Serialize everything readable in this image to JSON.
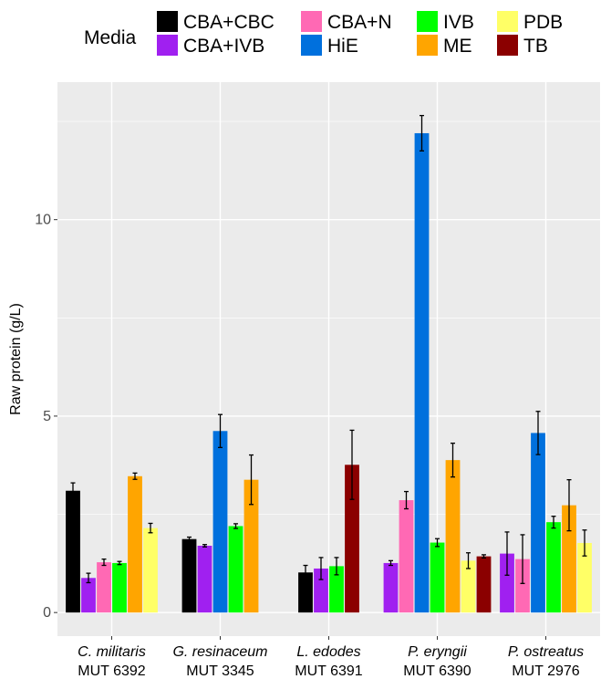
{
  "chart_data": {
    "type": "bar",
    "ylabel": "Raw protein (g/L)",
    "xlabel": "",
    "ylim": [
      -0.6,
      13.5
    ],
    "yticks": [
      0,
      5,
      10
    ],
    "ytick_labels": [
      "0",
      "5",
      "10"
    ],
    "grid": true,
    "legend_position": "top",
    "legend": {
      "title": "Media",
      "entries": [
        {
          "key": "CBA+CBC",
          "label": "CBA+CBC",
          "color": "#000000"
        },
        {
          "key": "CBA+IVB",
          "label": "CBA+IVB",
          "color": "#a020f0"
        },
        {
          "key": "CBA+N",
          "label": "CBA+N",
          "color": "#ff69b4"
        },
        {
          "key": "HiE",
          "label": "HiE",
          "color": "#0070dd"
        },
        {
          "key": "IVB",
          "label": "IVB",
          "color": "#00ff00"
        },
        {
          "key": "ME",
          "label": "ME",
          "color": "#ffa500"
        },
        {
          "key": "PDB",
          "label": "PDB",
          "color": "#ffff66"
        },
        {
          "key": "TB",
          "label": "TB",
          "color": "#8b0000"
        }
      ]
    },
    "categories": [
      {
        "species": "C. militaris",
        "strain": "MUT 6392"
      },
      {
        "species": "G. resinaceum",
        "strain": "MUT 3345"
      },
      {
        "species": "L. edodes",
        "strain": "MUT 6391"
      },
      {
        "species": "P. eryngii",
        "strain": "MUT 6390"
      },
      {
        "species": "P. ostreatus",
        "strain": "MUT 2976"
      }
    ],
    "groups": [
      [
        {
          "media": "CBA+CBC",
          "value": 3.1,
          "error": 0.2
        },
        {
          "media": "CBA+IVB",
          "value": 0.88,
          "error": 0.12
        },
        {
          "media": "CBA+N",
          "value": 1.28,
          "error": 0.08
        },
        {
          "media": "IVB",
          "value": 1.26,
          "error": 0.04
        },
        {
          "media": "ME",
          "value": 3.47,
          "error": 0.08
        },
        {
          "media": "PDB",
          "value": 2.15,
          "error": 0.12
        }
      ],
      [
        {
          "media": "CBA+CBC",
          "value": 1.87,
          "error": 0.05
        },
        {
          "media": "CBA+IVB",
          "value": 1.7,
          "error": 0.03
        },
        {
          "media": "HiE",
          "value": 4.62,
          "error": 0.42
        },
        {
          "media": "IVB",
          "value": 2.2,
          "error": 0.06
        },
        {
          "media": "ME",
          "value": 3.38,
          "error": 0.63
        }
      ],
      [
        {
          "media": "CBA+CBC",
          "value": 1.02,
          "error": 0.18
        },
        {
          "media": "CBA+IVB",
          "value": 1.12,
          "error": 0.28
        },
        {
          "media": "IVB",
          "value": 1.18,
          "error": 0.22
        },
        {
          "media": "TB",
          "value": 3.76,
          "error": 0.88
        }
      ],
      [
        {
          "media": "CBA+IVB",
          "value": 1.26,
          "error": 0.06
        },
        {
          "media": "CBA+N",
          "value": 2.86,
          "error": 0.22
        },
        {
          "media": "HiE",
          "value": 12.2,
          "error": 0.45
        },
        {
          "media": "IVB",
          "value": 1.78,
          "error": 0.1
        },
        {
          "media": "ME",
          "value": 3.88,
          "error": 0.43
        },
        {
          "media": "PDB",
          "value": 1.32,
          "error": 0.2
        },
        {
          "media": "TB",
          "value": 1.43,
          "error": 0.04
        }
      ],
      [
        {
          "media": "CBA+IVB",
          "value": 1.5,
          "error": 0.55
        },
        {
          "media": "CBA+N",
          "value": 1.36,
          "error": 0.62
        },
        {
          "media": "HiE",
          "value": 4.57,
          "error": 0.55
        },
        {
          "media": "IVB",
          "value": 2.3,
          "error": 0.15
        },
        {
          "media": "ME",
          "value": 2.73,
          "error": 0.65
        },
        {
          "media": "PDB",
          "value": 1.77,
          "error": 0.33
        }
      ]
    ]
  }
}
